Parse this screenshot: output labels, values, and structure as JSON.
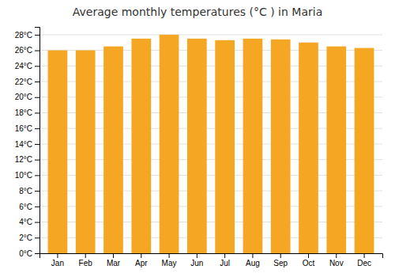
{
  "chart_data": {
    "type": "bar",
    "title": "Average monthly temperatures (°C ) in Maria",
    "categories": [
      "Jan",
      "Feb",
      "Mar",
      "Apr",
      "May",
      "Jun",
      "Jul",
      "Aug",
      "Sep",
      "Oct",
      "Nov",
      "Dec"
    ],
    "values": [
      26.0,
      26.0,
      26.5,
      27.5,
      28.0,
      27.5,
      27.3,
      27.5,
      27.4,
      27.0,
      26.5,
      26.3
    ],
    "color": "#F5A623",
    "ylim": [
      0,
      29
    ],
    "yticks": [
      {
        "value": 0,
        "label": "0°C"
      },
      {
        "value": 2,
        "label": "2°C"
      },
      {
        "value": 4,
        "label": "4°C"
      },
      {
        "value": 6,
        "label": "6°C"
      },
      {
        "value": 8,
        "label": "8°C"
      },
      {
        "value": 10,
        "label": "10°C"
      },
      {
        "value": 12,
        "label": "12°C"
      },
      {
        "value": 14,
        "label": "14°C"
      },
      {
        "value": 16,
        "label": "16°C"
      },
      {
        "value": 18,
        "label": "18°C"
      },
      {
        "value": 20,
        "label": "20°C"
      },
      {
        "value": 22,
        "label": "22°C"
      },
      {
        "value": 24,
        "label": "24°C"
      },
      {
        "value": 26,
        "label": "26°C"
      },
      {
        "value": 28,
        "label": "28°C"
      }
    ],
    "grid": true
  }
}
